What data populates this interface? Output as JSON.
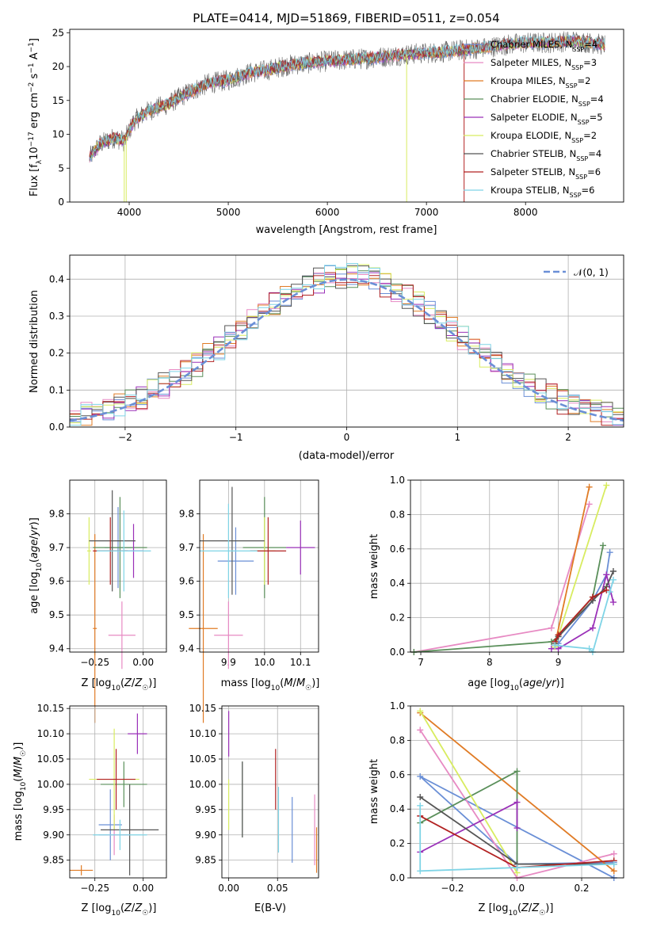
{
  "figure_title": "PLATE=0414, MJD=51869, FIBERID=0511, z=0.054",
  "series_styles": [
    {
      "name": "Chabrier MILES",
      "nssp": "4",
      "color": "#6a8fd6"
    },
    {
      "name": "Salpeter MILES",
      "nssp": "3",
      "color": "#e78ac3"
    },
    {
      "name": "Kroupa MILES",
      "nssp": "2",
      "color": "#e07b25"
    },
    {
      "name": "Chabrier ELODIE",
      "nssp": "4",
      "color": "#5a8f5a"
    },
    {
      "name": "Salpeter ELODIE",
      "nssp": "5",
      "color": "#9a30b8"
    },
    {
      "name": "Kroupa ELODIE",
      "nssp": "2",
      "color": "#d8ec60"
    },
    {
      "name": "Chabrier STELIB",
      "nssp": "4",
      "color": "#555555"
    },
    {
      "name": "Salpeter STELIB",
      "nssp": "6",
      "color": "#b22222"
    },
    {
      "name": "Kroupa STELIB",
      "nssp": "6",
      "color": "#7fd4e6"
    }
  ],
  "chart_data": [
    {
      "type": "line",
      "panel": "spectrum",
      "xlabel": "wavelength [Angstrom, rest frame]",
      "ylabel": "Flux [f_λ 10^-17 erg cm^-2 s^-1 A^-1]",
      "xlim": [
        3400,
        8990
      ],
      "ylim": [
        0,
        25.5
      ],
      "xticks": [
        4000,
        5000,
        6000,
        7000,
        8000
      ],
      "yticks": [
        0,
        5,
        10,
        15,
        20,
        25
      ],
      "legend": "right",
      "continuum": [
        [
          3600,
          6.5
        ],
        [
          3700,
          8.5
        ],
        [
          3850,
          9.5
        ],
        [
          3950,
          9.0
        ],
        [
          4050,
          12.0
        ],
        [
          4200,
          13.5
        ],
        [
          4400,
          14.5
        ],
        [
          4600,
          16.2
        ],
        [
          4800,
          17.5
        ],
        [
          5000,
          18.0
        ],
        [
          5200,
          19.0
        ],
        [
          5400,
          19.5
        ],
        [
          5600,
          20.2
        ],
        [
          5800,
          20.5
        ],
        [
          6000,
          20.8
        ],
        [
          6200,
          21.0
        ],
        [
          6400,
          21.2
        ],
        [
          6600,
          21.5
        ],
        [
          6800,
          21.8
        ],
        [
          7000,
          22.0
        ],
        [
          7200,
          22.2
        ],
        [
          7400,
          22.5
        ],
        [
          7600,
          22.8
        ],
        [
          7800,
          23.2
        ],
        [
          8000,
          23.5
        ],
        [
          8200,
          23.5
        ],
        [
          8500,
          23.8
        ],
        [
          8800,
          23.2
        ]
      ]
    },
    {
      "type": "line",
      "panel": "residual-distribution",
      "xlabel": "(data-model)/error",
      "ylabel": "Normed distribution",
      "xlim": [
        -2.5,
        2.5
      ],
      "ylim": [
        0,
        0.465
      ],
      "xticks": [
        -2,
        -1,
        0,
        1,
        2
      ],
      "yticks": [
        0.0,
        0.1,
        0.2,
        0.3,
        0.4
      ],
      "reference_label": "𝒩(0, 1)",
      "legend": "top-right"
    },
    {
      "type": "scatter",
      "panel": "age-vs-Z",
      "xlabel": "Z [log10(Z/Z☉)]",
      "ylabel": "age [log10(age/yr)]",
      "xlim": [
        -0.38,
        0.12
      ],
      "ylim": [
        9.39,
        9.9
      ],
      "xticks": [
        -0.25,
        0.0
      ],
      "yticks": [
        9.4,
        9.5,
        9.6,
        9.7,
        9.8
      ],
      "points": [
        {
          "x": -0.13,
          "xerr": 0.07,
          "y": 9.7,
          "yerr": 0.12
        },
        {
          "x": -0.11,
          "xerr": 0.07,
          "y": 9.44,
          "yerr": 0.1
        },
        {
          "x": -0.25,
          "xerr": 0.01,
          "y": 9.46,
          "yerr": 0.28
        },
        {
          "x": -0.12,
          "xerr": 0.14,
          "y": 9.7,
          "yerr": 0.15
        },
        {
          "x": -0.05,
          "xerr": 0.05,
          "y": 9.69,
          "yerr": 0.08
        },
        {
          "x": -0.28,
          "xerr": 0.01,
          "y": 9.69,
          "yerr": 0.1
        },
        {
          "x": -0.16,
          "xerr": 0.12,
          "y": 9.72,
          "yerr": 0.15
        },
        {
          "x": -0.17,
          "xerr": 0.09,
          "y": 9.69,
          "yerr": 0.1
        },
        {
          "x": -0.1,
          "xerr": 0.14,
          "y": 9.69,
          "yerr": 0.12
        }
      ]
    },
    {
      "type": "scatter",
      "panel": "age-vs-mass",
      "xlabel": "mass [log10(M/M☉)]",
      "ylabel": "",
      "xlim": [
        9.82,
        10.15
      ],
      "ylim": [
        9.39,
        9.9
      ],
      "xticks": [
        9.9,
        10.0,
        10.1
      ],
      "yticks": [
        9.4,
        9.5,
        9.6,
        9.7,
        9.8
      ],
      "points": [
        {
          "x": 9.92,
          "xerr": 0.05,
          "y": 9.66,
          "yerr": 0.1
        },
        {
          "x": 9.9,
          "xerr": 0.04,
          "y": 9.44,
          "yerr": 0.1
        },
        {
          "x": 9.83,
          "xerr": 0.04,
          "y": 9.46,
          "yerr": 0.28
        },
        {
          "x": 10.0,
          "xerr": 0.06,
          "y": 9.7,
          "yerr": 0.15
        },
        {
          "x": 10.1,
          "xerr": 0.04,
          "y": 9.7,
          "yerr": 0.08
        },
        {
          "x": 10.0,
          "xerr": 0.03,
          "y": 9.69,
          "yerr": 0.1
        },
        {
          "x": 9.91,
          "xerr": 0.09,
          "y": 9.72,
          "yerr": 0.16
        },
        {
          "x": 10.01,
          "xerr": 0.05,
          "y": 9.69,
          "yerr": 0.1
        },
        {
          "x": 9.9,
          "xerr": 0.08,
          "y": 9.69,
          "yerr": 0.14
        }
      ]
    },
    {
      "type": "line",
      "panel": "mass-weight-vs-age",
      "xlabel": "age [log10(age/yr)]",
      "ylabel": "mass weight",
      "xlim": [
        6.85,
        9.95
      ],
      "ylim": [
        0,
        1.0
      ],
      "xticks": [
        7,
        8,
        9
      ],
      "yticks": [
        0.0,
        0.2,
        0.4,
        0.6,
        0.8,
        1.0
      ],
      "series": [
        {
          "name": "Chabrier MILES",
          "x": [
            9.0,
            9.5,
            9.7,
            9.75
          ],
          "y": [
            0.05,
            0.3,
            0.45,
            0.58
          ]
        },
        {
          "name": "Salpeter MILES",
          "x": [
            6.9,
            8.9,
            9.45
          ],
          "y": [
            0.0,
            0.14,
            0.86
          ]
        },
        {
          "name": "Kroupa MILES",
          "x": [
            8.95,
            9.45
          ],
          "y": [
            0.04,
            0.96
          ]
        },
        {
          "name": "Chabrier ELODIE",
          "x": [
            6.9,
            8.9,
            9.0,
            9.5,
            9.65
          ],
          "y": [
            0.0,
            0.06,
            0.09,
            0.32,
            0.62
          ]
        },
        {
          "name": "Salpeter ELODIE",
          "x": [
            8.9,
            9.0,
            9.5,
            9.7,
            9.8
          ],
          "y": [
            0.02,
            0.02,
            0.14,
            0.45,
            0.29
          ]
        },
        {
          "name": "Kroupa ELODIE",
          "x": [
            8.95,
            9.7
          ],
          "y": [
            0.03,
            0.97
          ]
        },
        {
          "name": "Chabrier STELIB",
          "x": [
            8.95,
            9.0,
            9.5,
            9.7,
            9.8
          ],
          "y": [
            0.05,
            0.09,
            0.3,
            0.38,
            0.47
          ]
        },
        {
          "name": "Salpeter STELIB",
          "x": [
            8.95,
            9.0,
            9.5,
            9.7
          ],
          "y": [
            0.06,
            0.1,
            0.32,
            0.36
          ]
        },
        {
          "name": "Kroupa STELIB",
          "x": [
            8.95,
            9.45,
            9.5,
            9.75,
            9.8
          ],
          "y": [
            0.04,
            0.02,
            0.0,
            0.35,
            0.42
          ]
        }
      ]
    },
    {
      "type": "scatter",
      "panel": "mass-vs-Z",
      "xlabel": "Z [log10(Z/Z☉)]",
      "ylabel": "mass [log10(M/M☉)]",
      "xlim": [
        -0.38,
        0.12
      ],
      "ylim": [
        9.815,
        10.155
      ],
      "xticks": [
        -0.25,
        0.0
      ],
      "yticks": [
        9.85,
        9.9,
        9.95,
        10.0,
        10.05,
        10.1,
        10.15
      ],
      "points": [
        {
          "x": -0.17,
          "xerr": 0.06,
          "y": 9.92,
          "yerr": 0.07
        },
        {
          "x": -0.15,
          "xerr": 0.08,
          "y": 9.9,
          "yerr": 0.04
        },
        {
          "x": -0.32,
          "xerr": 0.06,
          "y": 9.83,
          "yerr": 0.01
        },
        {
          "x": -0.1,
          "xerr": 0.12,
          "y": 10.0,
          "yerr": 0.045
        },
        {
          "x": -0.03,
          "xerr": 0.05,
          "y": 10.1,
          "yerr": 0.04
        },
        {
          "x": -0.15,
          "xerr": 0.13,
          "y": 10.01,
          "yerr": 0.1
        },
        {
          "x": -0.07,
          "xerr": 0.15,
          "y": 9.91,
          "yerr": 0.09
        },
        {
          "x": -0.14,
          "xerr": 0.1,
          "y": 10.01,
          "yerr": 0.06
        },
        {
          "x": -0.12,
          "xerr": 0.14,
          "y": 9.9,
          "yerr": 0.03
        }
      ]
    },
    {
      "type": "scatter",
      "panel": "mass-vs-EBV",
      "xlabel": "E(B-V)",
      "ylabel": "",
      "xlim": [
        -0.007,
        0.092
      ],
      "ylim": [
        9.815,
        10.155
      ],
      "xticks": [
        0.0,
        0.05
      ],
      "xticklabels": [
        "0.00",
        "0.05"
      ],
      "yticks": [
        9.85,
        9.9,
        9.95,
        10.0,
        10.05,
        10.1,
        10.15
      ],
      "points": [
        {
          "x": 0.065,
          "y": 9.91,
          "yerr": 0.065
        },
        {
          "x": 0.088,
          "y": 9.91,
          "yerr": 0.07
        },
        {
          "x": 0.09,
          "y": 9.87,
          "yerr": 0.045
        },
        {
          "x": 0.014,
          "y": 9.97,
          "yerr": 0.075
        },
        {
          "x": 0.0,
          "y": 10.1,
          "yerr": 0.045
        },
        {
          "x": 0.0,
          "y": 9.96,
          "yerr": 0.05
        },
        {
          "x": 0.014,
          "y": 9.97,
          "yerr": 0.075
        },
        {
          "x": 0.048,
          "y": 10.01,
          "yerr": 0.06
        },
        {
          "x": 0.051,
          "y": 9.93,
          "yerr": 0.065
        }
      ]
    },
    {
      "type": "line",
      "panel": "mass-weight-vs-Z",
      "xlabel": "Z [log10(Z/Z☉)]",
      "ylabel": "mass weight",
      "xlim": [
        -0.33,
        0.33
      ],
      "ylim": [
        0,
        1.0
      ],
      "xticks": [
        -0.2,
        0.0,
        0.2
      ],
      "yticks": [
        0.0,
        0.2,
        0.4,
        0.6,
        0.8,
        1.0
      ],
      "series": [
        {
          "name": "Chabrier MILES",
          "x": [
            0.3,
            -0.3,
            0.0,
            0.3
          ],
          "y": [
            0.0,
            0.59,
            0.08,
            0.09
          ]
        },
        {
          "name": "Salpeter MILES",
          "x": [
            -0.3,
            0.0,
            0.3
          ],
          "y": [
            0.86,
            0.0,
            0.14
          ]
        },
        {
          "name": "Kroupa MILES",
          "x": [
            -0.3,
            0.3
          ],
          "y": [
            0.96,
            0.04
          ]
        },
        {
          "name": "Chabrier ELODIE",
          "x": [
            -0.3,
            0.0,
            0.0
          ],
          "y": [
            0.32,
            0.62,
            0.06
          ]
        },
        {
          "name": "Salpeter ELODIE",
          "x": [
            -0.3,
            0.0,
            0.0
          ],
          "y": [
            0.15,
            0.44,
            0.29
          ]
        },
        {
          "name": "Kroupa ELODIE",
          "x": [
            -0.3,
            0.0
          ],
          "y": [
            0.97,
            0.03
          ]
        },
        {
          "name": "Chabrier STELIB",
          "x": [
            -0.3,
            0.0,
            0.3
          ],
          "y": [
            0.47,
            0.08,
            0.08
          ]
        },
        {
          "name": "Salpeter STELIB",
          "x": [
            -0.3,
            0.0,
            0.3
          ],
          "y": [
            0.36,
            0.06,
            0.1
          ]
        },
        {
          "name": "Kroupa STELIB",
          "x": [
            -0.3,
            -0.3,
            0.0,
            0.3
          ],
          "y": [
            0.42,
            0.04,
            0.06,
            0.08
          ]
        }
      ]
    }
  ]
}
